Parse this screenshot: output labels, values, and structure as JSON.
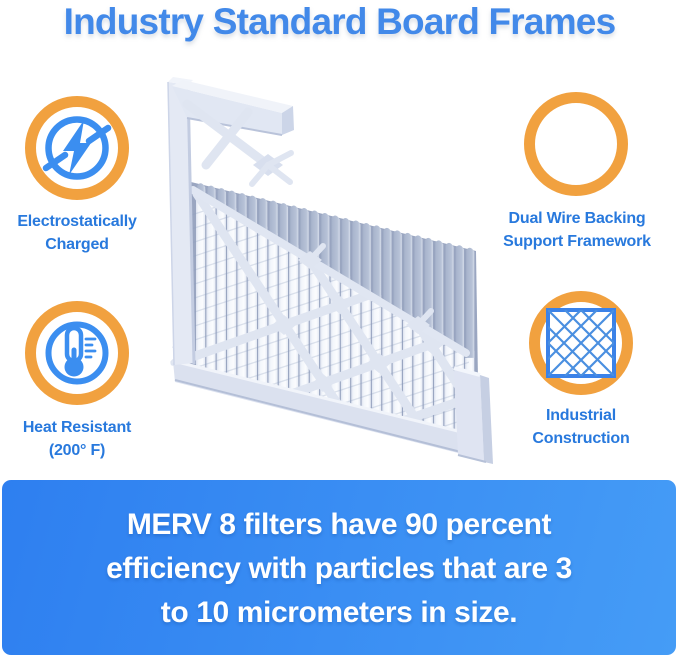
{
  "title": "Industry Standard Board Frames",
  "features": [
    {
      "id": "electrostatically-charged",
      "icon": "lightning-icon",
      "line1": "Electrostatically",
      "line2": "Charged"
    },
    {
      "id": "dual-wire-backing",
      "icon": "wire-mesh-icon",
      "line1": "Dual Wire Backing",
      "line2": "Support Framework"
    },
    {
      "id": "heat-resistant",
      "icon": "thermometer-icon",
      "line1": "Heat Resistant",
      "line2": "(200° F)"
    },
    {
      "id": "industrial-construction",
      "icon": "lattice-grid-icon",
      "line1": "Industrial",
      "line2": "Construction"
    }
  ],
  "illustration": {
    "name": "pleated-air-filter-render"
  },
  "banner": {
    "line1": "MERV 8 filters have 90 percent",
    "line2": "efficiency with particles that are 3",
    "line3": "to 10 micrometers in size."
  },
  "colors": {
    "title_blue": "#4289e9",
    "label_blue": "#2879dd",
    "ring_orange": "#f1a13f",
    "icon_blue": "#3b8ef0",
    "banner_blue_start": "#2e7ff0",
    "banner_blue_end": "#459cf6",
    "frame_tint": "#dfe5f2"
  }
}
